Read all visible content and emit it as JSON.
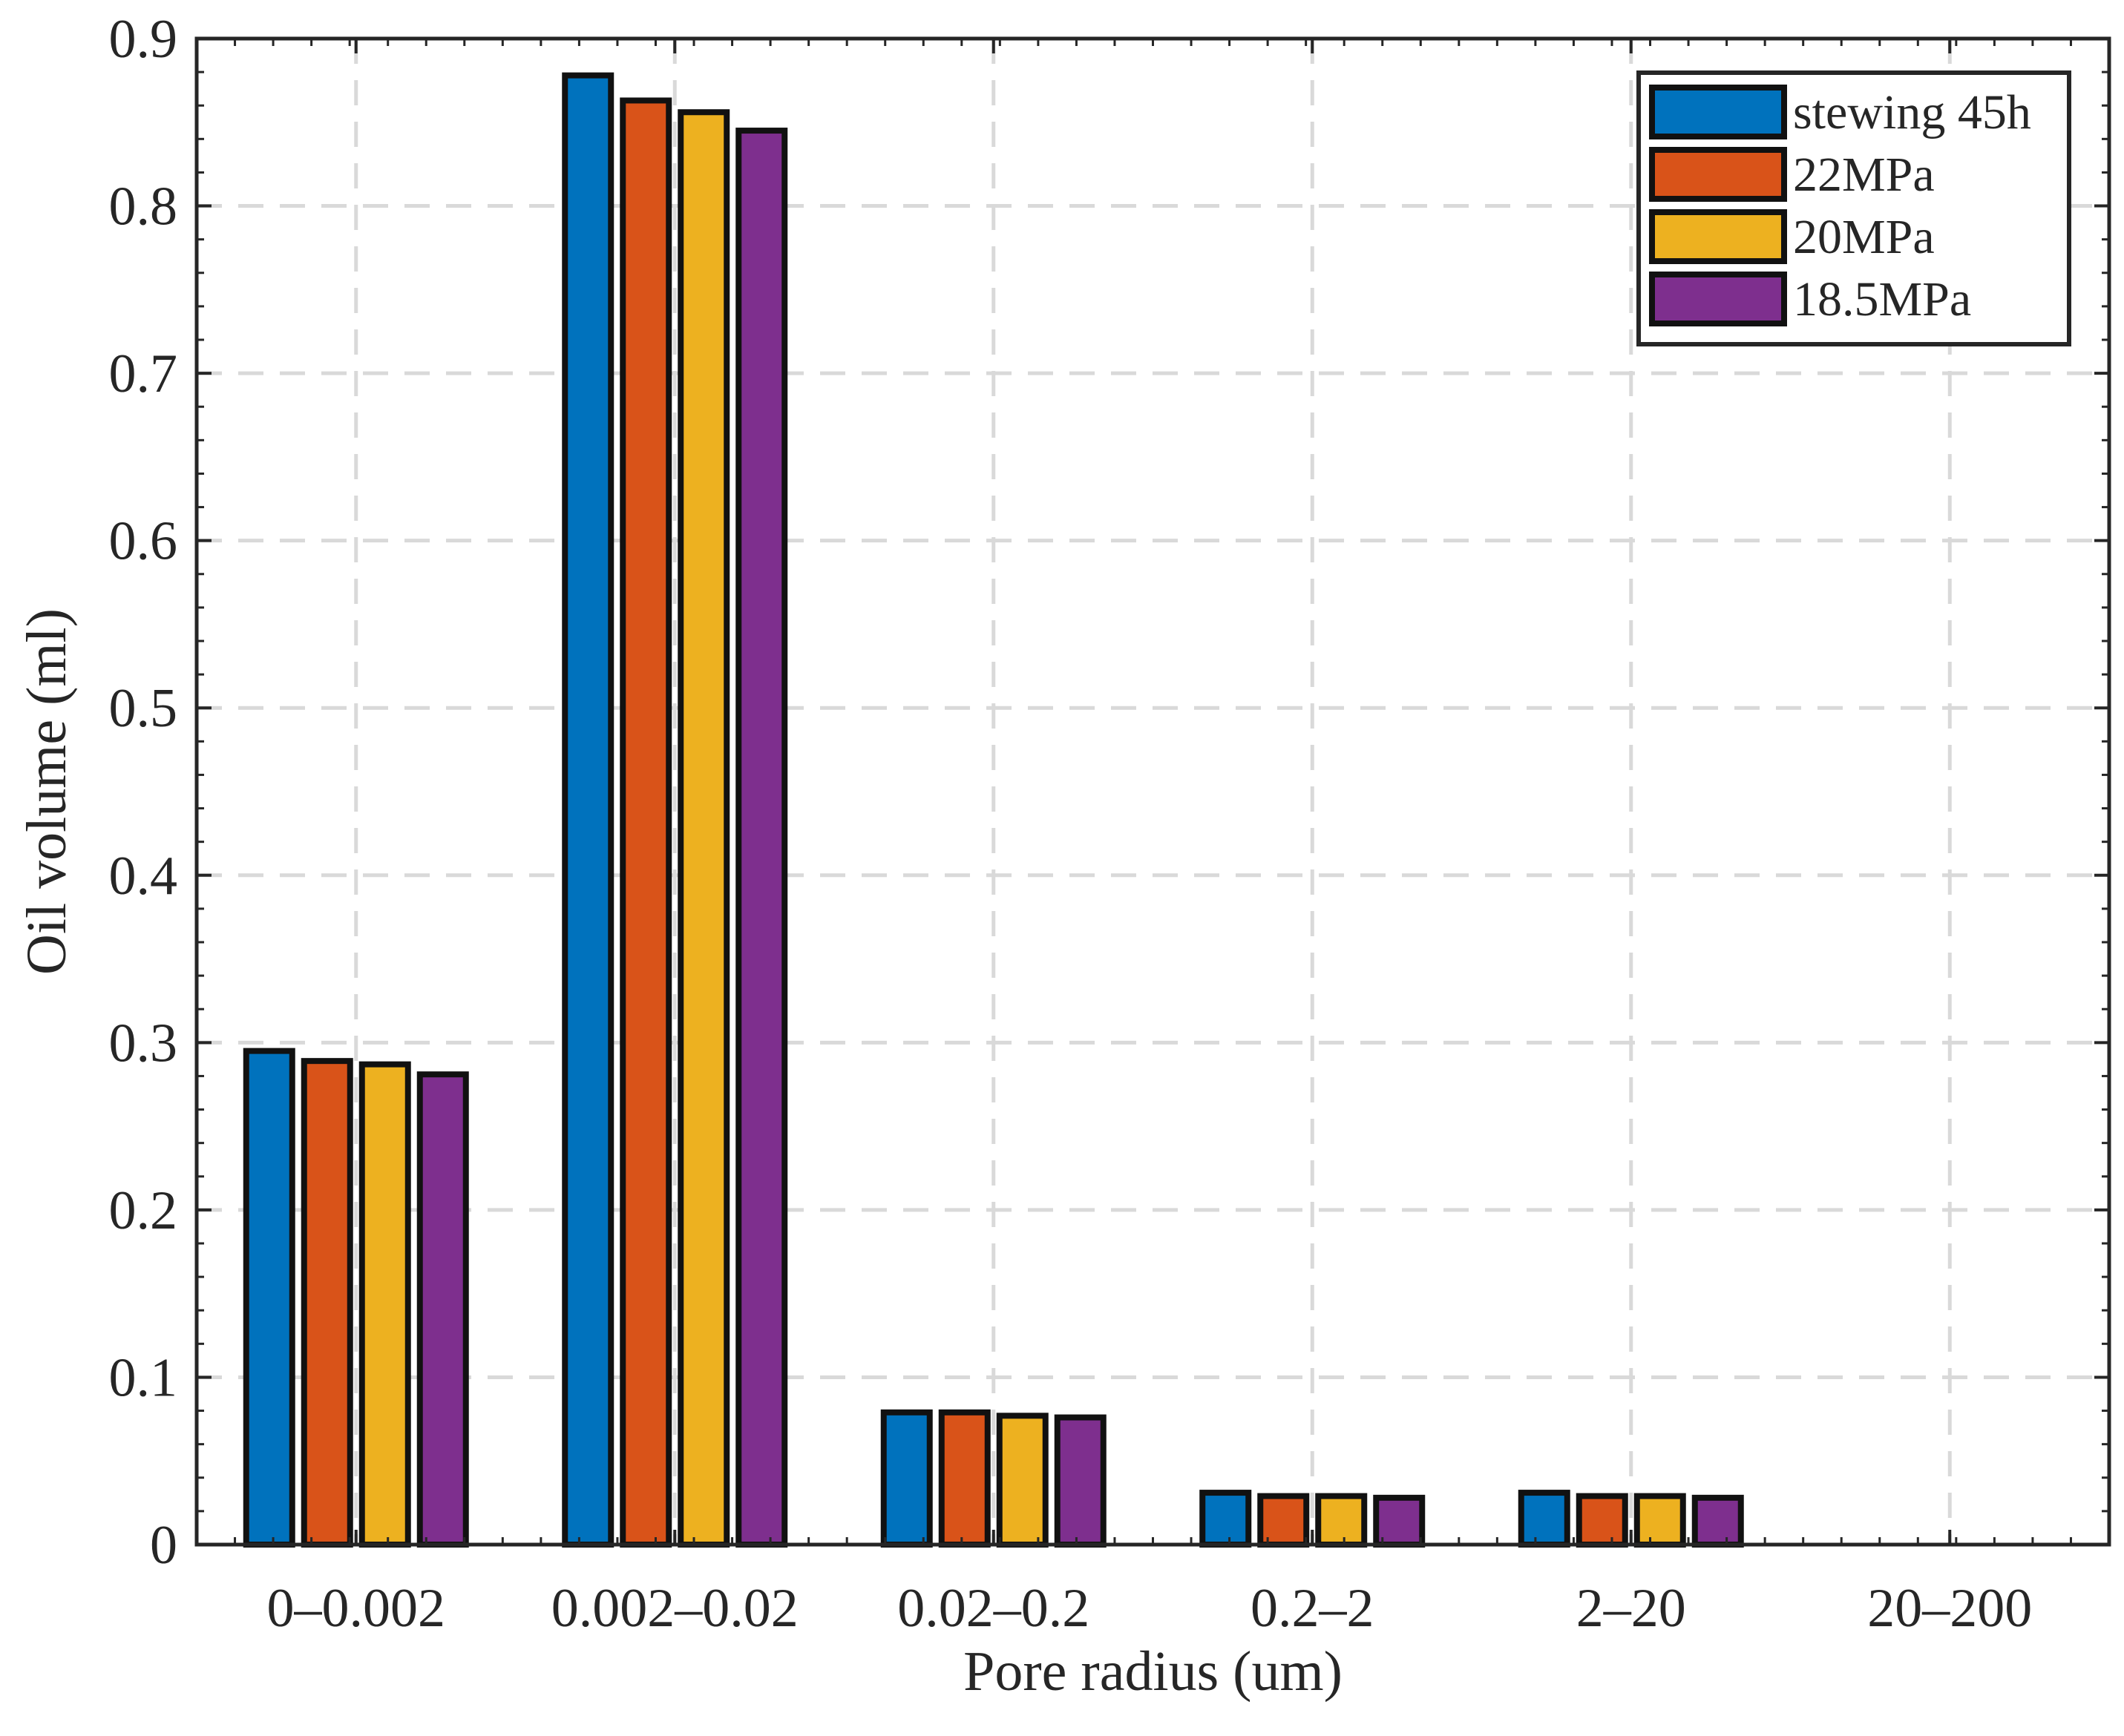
{
  "chart_data": {
    "type": "bar",
    "title": "",
    "xlabel": "Pore radius (um)",
    "ylabel": "Oil volume (ml)",
    "categories": [
      "0–0.002",
      "0.002–0.02",
      "0.02–0.2",
      "0.2–2",
      "2–20",
      "20–200"
    ],
    "series": [
      {
        "name": "stewing 45h",
        "color": "#0072BD",
        "values": [
          0.295,
          0.878,
          0.079,
          0.031,
          0.031,
          0.0
        ]
      },
      {
        "name": "22MPa",
        "color": "#D95319",
        "values": [
          0.289,
          0.863,
          0.079,
          0.029,
          0.029,
          0.0
        ]
      },
      {
        "name": "20MPa",
        "color": "#EDB120",
        "values": [
          0.287,
          0.856,
          0.077,
          0.029,
          0.029,
          0.0
        ]
      },
      {
        "name": "18.5MPa",
        "color": "#7E2F8E",
        "values": [
          0.281,
          0.845,
          0.076,
          0.028,
          0.028,
          0.0
        ]
      }
    ],
    "ylim": [
      0,
      0.9
    ],
    "yticks": [
      0,
      0.1,
      0.2,
      0.3,
      0.4,
      0.5,
      0.6,
      0.7,
      0.8,
      0.9
    ],
    "ytick_labels": [
      "0",
      "0.1",
      "0.2",
      "0.3",
      "0.4",
      "0.5",
      "0.6",
      "0.7",
      "0.8",
      "0.9"
    ],
    "grid": true,
    "legend_position": "top-right"
  }
}
